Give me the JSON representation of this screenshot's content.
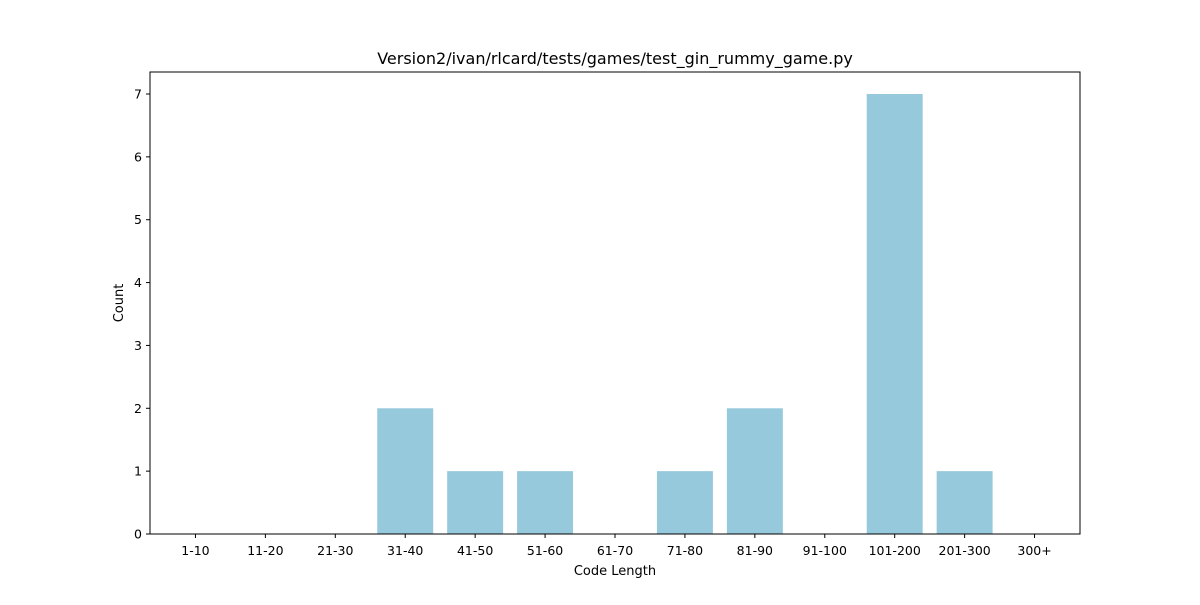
{
  "chart_data": {
    "type": "bar",
    "title": "Version2/ivan/rlcard/tests/games/test_gin_rummy_game.py",
    "xlabel": "Code Length",
    "ylabel": "Count",
    "categories": [
      "1-10",
      "11-20",
      "21-30",
      "31-40",
      "41-50",
      "51-60",
      "61-70",
      "71-80",
      "81-90",
      "91-100",
      "101-200",
      "201-300",
      "300+"
    ],
    "values": [
      0,
      0,
      0,
      2,
      1,
      1,
      0,
      1,
      2,
      0,
      7,
      1,
      0
    ],
    "ylim": [
      0,
      7.35
    ],
    "yticks": [
      0,
      1,
      2,
      3,
      4,
      5,
      6,
      7
    ],
    "grid": false,
    "bar_color": "#96c9dc"
  }
}
